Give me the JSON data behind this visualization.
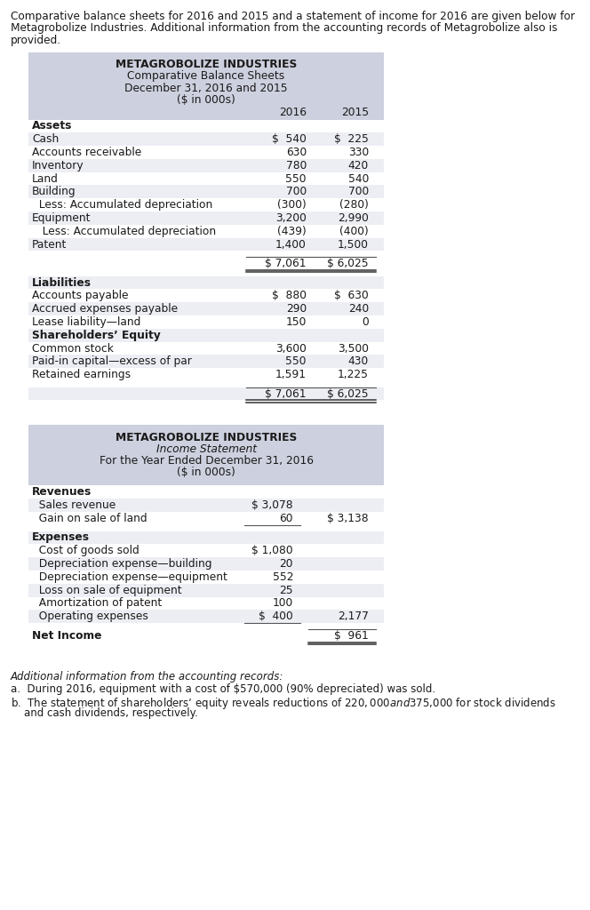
{
  "bg_color": "#ffffff",
  "header_bg": "#cdd0de",
  "row_bg_alt": "#eceef4",
  "row_bg_white": "#ffffff",
  "text_color": "#1a1a1a",
  "intro_text_lines": [
    "Comparative balance sheets for 2016 and 2015 and a statement of income for 2016 are given below for",
    "Metagrobolize Industries. Additional information from the accounting records of Metagrobolize also is",
    "provided."
  ],
  "bs_title1": "METAGROBOLIZE INDUSTRIES",
  "bs_title2": "Comparative Balance Sheets",
  "bs_title3": "December 31, 2016 and 2015",
  "bs_title4": "($ in 000s)",
  "bs_col_2016": "2016",
  "bs_col_2015": "2015",
  "bs_rows": [
    {
      "label": "Assets",
      "v2016": "",
      "v2015": "",
      "bold": true,
      "indent": 0,
      "total": false,
      "spacer": false
    },
    {
      "label": "Cash",
      "v2016": "$  540",
      "v2015": "$  225",
      "bold": false,
      "indent": 0,
      "total": false,
      "spacer": false
    },
    {
      "label": "Accounts receivable",
      "v2016": "630",
      "v2015": "330",
      "bold": false,
      "indent": 0,
      "total": false,
      "spacer": false
    },
    {
      "label": "Inventory",
      "v2016": "780",
      "v2015": "420",
      "bold": false,
      "indent": 0,
      "total": false,
      "spacer": false
    },
    {
      "label": "Land",
      "v2016": "550",
      "v2015": "540",
      "bold": false,
      "indent": 0,
      "total": false,
      "spacer": false
    },
    {
      "label": "Building",
      "v2016": "700",
      "v2015": "700",
      "bold": false,
      "indent": 0,
      "total": false,
      "spacer": false
    },
    {
      "label": "  Less: Accumulated depreciation",
      "v2016": "(300)",
      "v2015": "(280)",
      "bold": false,
      "indent": 0,
      "total": false,
      "spacer": false
    },
    {
      "label": "Equipment",
      "v2016": "3,200",
      "v2015": "2,990",
      "bold": false,
      "indent": 0,
      "total": false,
      "spacer": false
    },
    {
      "label": "   Less: Accumulated depreciation",
      "v2016": "(439)",
      "v2015": "(400)",
      "bold": false,
      "indent": 0,
      "total": false,
      "spacer": false
    },
    {
      "label": "Patent",
      "v2016": "1,400",
      "v2015": "1,500",
      "bold": false,
      "indent": 0,
      "total": false,
      "spacer": false
    },
    {
      "label": "",
      "v2016": "",
      "v2015": "",
      "bold": false,
      "indent": 0,
      "total": false,
      "spacer": true
    },
    {
      "label": "",
      "v2016": "$ 7,061",
      "v2015": "$ 6,025",
      "bold": false,
      "indent": 0,
      "total": true,
      "spacer": false
    },
    {
      "label": "",
      "v2016": "",
      "v2015": "",
      "bold": false,
      "indent": 0,
      "total": false,
      "spacer": true
    },
    {
      "label": "Liabilities",
      "v2016": "",
      "v2015": "",
      "bold": true,
      "indent": 0,
      "total": false,
      "spacer": false
    },
    {
      "label": "Accounts payable",
      "v2016": "$  880",
      "v2015": "$  630",
      "bold": false,
      "indent": 0,
      "total": false,
      "spacer": false
    },
    {
      "label": "Accrued expenses payable",
      "v2016": "290",
      "v2015": "240",
      "bold": false,
      "indent": 0,
      "total": false,
      "spacer": false
    },
    {
      "label": "Lease liability—land",
      "v2016": "150",
      "v2015": "0",
      "bold": false,
      "indent": 0,
      "total": false,
      "spacer": false
    },
    {
      "label": "Shareholders’ Equity",
      "v2016": "",
      "v2015": "",
      "bold": true,
      "indent": 0,
      "total": false,
      "spacer": false
    },
    {
      "label": "Common stock",
      "v2016": "3,600",
      "v2015": "3,500",
      "bold": false,
      "indent": 0,
      "total": false,
      "spacer": false
    },
    {
      "label": "Paid-in capital—excess of par",
      "v2016": "550",
      "v2015": "430",
      "bold": false,
      "indent": 0,
      "total": false,
      "spacer": false
    },
    {
      "label": "Retained earnings",
      "v2016": "1,591",
      "v2015": "1,225",
      "bold": false,
      "indent": 0,
      "total": false,
      "spacer": false
    },
    {
      "label": "",
      "v2016": "",
      "v2015": "",
      "bold": false,
      "indent": 0,
      "total": false,
      "spacer": true
    },
    {
      "label": "",
      "v2016": "$ 7,061",
      "v2015": "$ 6,025",
      "bold": false,
      "indent": 0,
      "total": true,
      "spacer": false
    }
  ],
  "is_title1": "METAGROBOLIZE INDUSTRIES",
  "is_title2": "Income Statement",
  "is_title3": "For the Year Ended December 31, 2016",
  "is_title4": "($ in 000s)",
  "is_rows": [
    {
      "label": "Revenues",
      "v1": "",
      "v2": "",
      "bold": true,
      "total": false,
      "spacer": false,
      "uline1": false
    },
    {
      "label": "  Sales revenue",
      "v1": "$ 3,078",
      "v2": "",
      "bold": false,
      "total": false,
      "spacer": false,
      "uline1": false
    },
    {
      "label": "  Gain on sale of land",
      "v1": "60",
      "v2": "$ 3,138",
      "bold": false,
      "total": false,
      "spacer": false,
      "uline1": true
    },
    {
      "label": "",
      "v1": "",
      "v2": "",
      "bold": false,
      "total": false,
      "spacer": true,
      "uline1": false
    },
    {
      "label": "Expenses",
      "v1": "",
      "v2": "",
      "bold": true,
      "total": false,
      "spacer": false,
      "uline1": false
    },
    {
      "label": "  Cost of goods sold",
      "v1": "$ 1,080",
      "v2": "",
      "bold": false,
      "total": false,
      "spacer": false,
      "uline1": false
    },
    {
      "label": "  Depreciation expense—building",
      "v1": "20",
      "v2": "",
      "bold": false,
      "total": false,
      "spacer": false,
      "uline1": false
    },
    {
      "label": "  Depreciation expense—equipment",
      "v1": "552",
      "v2": "",
      "bold": false,
      "total": false,
      "spacer": false,
      "uline1": false
    },
    {
      "label": "  Loss on sale of equipment",
      "v1": "25",
      "v2": "",
      "bold": false,
      "total": false,
      "spacer": false,
      "uline1": false
    },
    {
      "label": "  Amortization of patent",
      "v1": "100",
      "v2": "",
      "bold": false,
      "total": false,
      "spacer": false,
      "uline1": false
    },
    {
      "label": "  Operating expenses",
      "v1": "$  400",
      "v2": "2,177",
      "bold": false,
      "total": false,
      "spacer": false,
      "uline1": true
    },
    {
      "label": "",
      "v1": "",
      "v2": "",
      "bold": false,
      "total": false,
      "spacer": true,
      "uline1": false
    },
    {
      "label": "Net Income",
      "v1": "",
      "v2": "$  961",
      "bold": true,
      "total": true,
      "spacer": false,
      "uline1": false
    }
  ],
  "footnote_title": "Additional information from the accounting records:",
  "footnote_a": "a.  During 2016, equipment with a cost of $570,000 (90% depreciated) was sold.",
  "footnote_b1": "b.  The statement of shareholders’ equity reveals reductions of $220,000 and $375,000 for stock dividends",
  "footnote_b2": "    and cash dividends, respectively."
}
